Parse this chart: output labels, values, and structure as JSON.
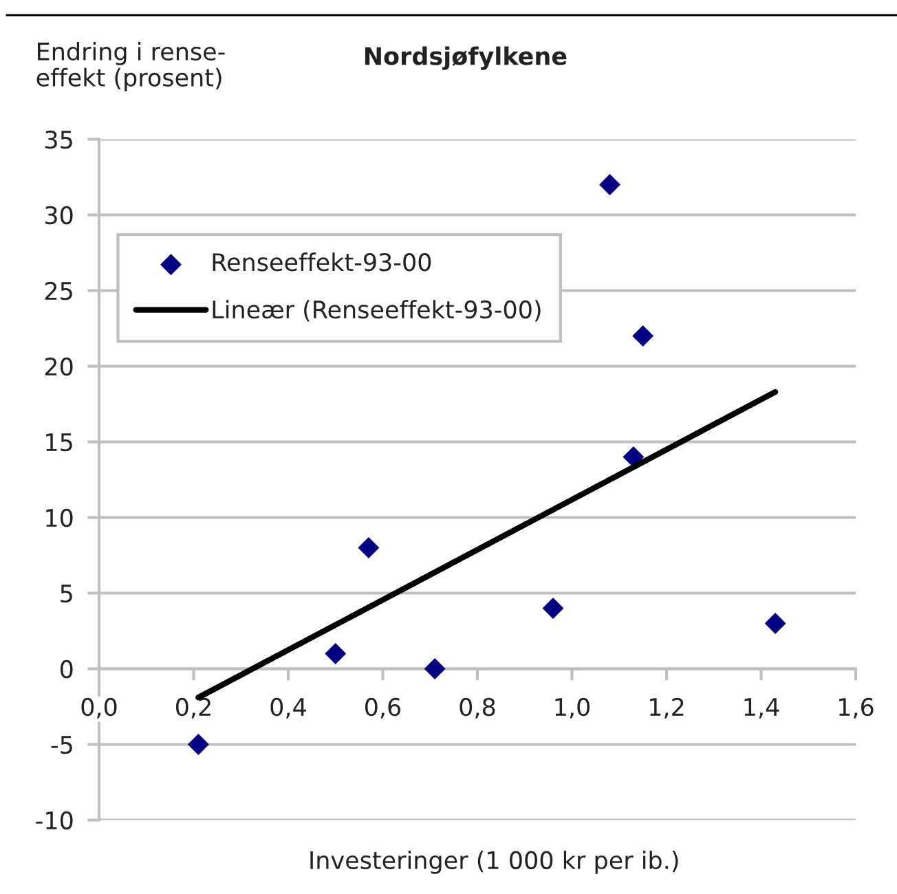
{
  "chart_data": {
    "type": "scatter",
    "title": "Nordsjøfylkene",
    "xlabel": "Investeringer (1 000 kr per ib.)",
    "ylabel": "Endring i rense-\neffekt (prosent)",
    "xlim": [
      0,
      1.6
    ],
    "xticks": [
      {
        "value": 0,
        "label": "0,0"
      },
      {
        "value": 0.2,
        "label": "0,2"
      },
      {
        "value": 0.4,
        "label": "0,4"
      },
      {
        "value": 0.6,
        "label": "0,6"
      },
      {
        "value": 0.8,
        "label": "0,8"
      },
      {
        "value": 1.0,
        "label": "1,0"
      },
      {
        "value": 1.2,
        "label": "1,2"
      },
      {
        "value": 1.4,
        "label": "1,4"
      },
      {
        "value": 1.6,
        "label": "1,6"
      }
    ],
    "ylim": [
      -10,
      35
    ],
    "yticks": [
      -10,
      -5,
      0,
      5,
      10,
      15,
      20,
      25,
      30,
      35
    ],
    "grid": "y",
    "legend": "top left",
    "marker": "diamond",
    "series": [
      {
        "name": "Renseeffekt-93-00",
        "color": "#000080",
        "x": [
          0.21,
          0.5,
          0.57,
          0.71,
          0.96,
          1.08,
          1.13,
          1.15,
          1.43
        ],
        "values": [
          -5,
          1,
          8,
          0,
          4,
          32,
          14,
          22,
          3
        ]
      },
      {
        "name": "Lineær (Renseeffekt-93-00)",
        "type": "line",
        "marker": "none",
        "line_style": "solid",
        "color": "#000000",
        "x": [
          0.21,
          1.43
        ],
        "values": [
          -1.9,
          18.3
        ]
      }
    ]
  }
}
